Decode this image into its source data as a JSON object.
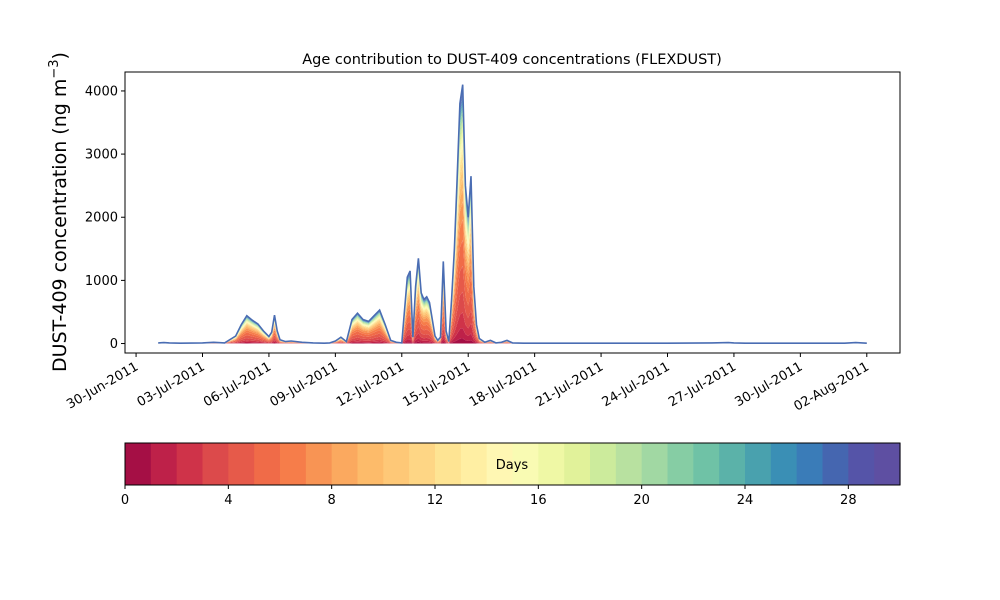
{
  "chart_data": {
    "type": "area",
    "title": "Age contribution to DUST-409 concentrations (FLEXDUST)",
    "ylabel": "DUST-409 concentration (ng m⁻³)",
    "ylabel_main": "DUST-409 concentration (ng m",
    "ylabel_sup": "−3",
    "ylabel_close": ")",
    "xlabel": "",
    "x_range": [
      "2011-06-29T12:00",
      "2011-08-03T12:00"
    ],
    "ylim": [
      -150,
      4300
    ],
    "y_ticks": [
      0,
      1000,
      2000,
      3000,
      4000
    ],
    "x_ticks": [
      "30-Jun-2011",
      "03-Jul-2011",
      "06-Jul-2011",
      "09-Jul-2011",
      "12-Jul-2011",
      "15-Jul-2011",
      "18-Jul-2011",
      "21-Jul-2011",
      "24-Jul-2011",
      "27-Jul-2011",
      "30-Jul-2011",
      "02-Aug-2011"
    ],
    "x_tick_dates": [
      "2011-06-30",
      "2011-07-03",
      "2011-07-06",
      "2011-07-09",
      "2011-07-12",
      "2011-07-15",
      "2011-07-18",
      "2011-07-21",
      "2011-07-24",
      "2011-07-27",
      "2011-07-30",
      "2011-08-02"
    ],
    "grid": false,
    "series": [
      {
        "x": [
          "2011-07-01T00:00",
          "2011-07-01T06:00",
          "2011-07-01T12:00",
          "2011-07-02T00:00",
          "2011-07-03T00:00",
          "2011-07-03T12:00",
          "2011-07-04T00:00",
          "2011-07-04T12:00",
          "2011-07-04T18:00",
          "2011-07-05T00:00",
          "2011-07-05T06:00",
          "2011-07-05T12:00",
          "2011-07-05T18:00",
          "2011-07-06T00:00",
          "2011-07-06T03:00",
          "2011-07-06T06:00",
          "2011-07-06T09:00",
          "2011-07-06T12:00",
          "2011-07-06T18:00",
          "2011-07-07T00:00",
          "2011-07-07T12:00",
          "2011-07-08T00:00",
          "2011-07-08T12:00",
          "2011-07-08T18:00",
          "2011-07-09T00:00",
          "2011-07-09T06:00",
          "2011-07-09T12:00",
          "2011-07-09T18:00",
          "2011-07-10T00:00",
          "2011-07-10T06:00",
          "2011-07-10T12:00",
          "2011-07-10T18:00",
          "2011-07-11T00:00",
          "2011-07-11T06:00",
          "2011-07-11T12:00",
          "2011-07-11T18:00",
          "2011-07-12T00:00",
          "2011-07-12T06:00",
          "2011-07-12T09:00",
          "2011-07-12T12:00",
          "2011-07-12T15:00",
          "2011-07-12T18:00",
          "2011-07-12T21:00",
          "2011-07-13T00:00",
          "2011-07-13T03:00",
          "2011-07-13T06:00",
          "2011-07-13T12:00",
          "2011-07-13T15:00",
          "2011-07-13T18:00",
          "2011-07-13T21:00",
          "2011-07-14T00:00",
          "2011-07-14T03:00",
          "2011-07-14T06:00",
          "2011-07-14T09:00",
          "2011-07-14T12:00",
          "2011-07-14T15:00",
          "2011-07-14T18:00",
          "2011-07-14T21:00",
          "2011-07-15T00:00",
          "2011-07-15T03:00",
          "2011-07-15T06:00",
          "2011-07-15T09:00",
          "2011-07-15T12:00",
          "2011-07-15T18:00",
          "2011-07-16T00:00",
          "2011-07-16T06:00",
          "2011-07-16T12:00",
          "2011-07-16T18:00",
          "2011-07-17T00:00",
          "2011-07-17T12:00",
          "2011-07-18T00:00",
          "2011-07-20T00:00",
          "2011-07-22T00:00",
          "2011-07-24T00:00",
          "2011-07-26T00:00",
          "2011-07-26T18:00",
          "2011-07-27T00:00",
          "2011-07-27T12:00",
          "2011-07-28T00:00",
          "2011-07-30T00:00",
          "2011-07-31T00:00",
          "2011-08-01T00:00",
          "2011-08-01T12:00",
          "2011-08-02T00:00"
        ],
        "values": [
          10,
          15,
          10,
          5,
          10,
          20,
          10,
          120,
          300,
          440,
          370,
          310,
          200,
          110,
          180,
          450,
          200,
          60,
          30,
          40,
          20,
          10,
          5,
          10,
          40,
          100,
          30,
          380,
          480,
          380,
          350,
          440,
          530,
          300,
          50,
          20,
          10,
          1050,
          1150,
          100,
          900,
          1350,
          800,
          700,
          740,
          650,
          120,
          50,
          100,
          1300,
          200,
          30,
          700,
          1500,
          2600,
          3800,
          4100,
          2500,
          2000,
          2650,
          900,
          300,
          80,
          20,
          50,
          10,
          20,
          50,
          10,
          5,
          5,
          5,
          5,
          5,
          10,
          15,
          10,
          5,
          5,
          5,
          5,
          5,
          15,
          5
        ]
      }
    ],
    "layer_fractions": [
      0.0,
      0.02,
      0.06,
      0.12,
      0.2,
      0.3,
      0.4,
      0.48,
      0.55,
      0.6,
      0.64,
      0.68,
      0.71,
      0.74,
      0.76,
      0.78,
      0.8,
      0.82,
      0.84,
      0.86,
      0.88,
      0.9,
      0.91,
      0.92,
      0.93,
      0.94,
      0.95,
      0.96,
      0.97,
      0.98,
      1.0
    ],
    "colorbar": {
      "label": "Days",
      "min": 0,
      "max": 30,
      "ticks": [
        0,
        4,
        8,
        12,
        16,
        20,
        24,
        28
      ],
      "colors": [
        "#a50f45",
        "#be2149",
        "#cf3349",
        "#dc4a4b",
        "#e65a4a",
        "#f06b48",
        "#f67d4a",
        "#f89454",
        "#fba95f",
        "#fdbb6a",
        "#fec877",
        "#fed685",
        "#fee493",
        "#ffefa3",
        "#fff7b3",
        "#f9fbb3",
        "#eff8a5",
        "#e1f29a",
        "#cceb9c",
        "#b8e1a0",
        "#a1d8a3",
        "#86cda4",
        "#6fc2a6",
        "#5bb2a9",
        "#49a1ae",
        "#3a8fb5",
        "#3a7cb8",
        "#4566b0",
        "#5554a8",
        "#5e4fa2"
      ]
    },
    "envelope_color": "#4a6db3"
  }
}
